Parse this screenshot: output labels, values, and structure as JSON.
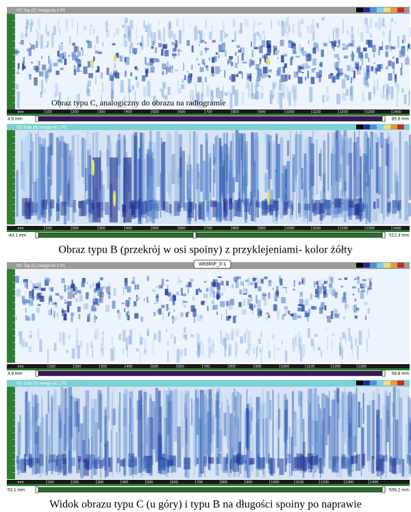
{
  "panels": [
    {
      "header": "VC-Top (C) merge:As 1 P1",
      "ruler_ticks": [
        "mm",
        "100",
        "200",
        "300",
        "400",
        "500",
        "600",
        "700",
        "800",
        "900",
        "1000",
        "1100",
        "1200",
        "1300",
        "1400"
      ],
      "range_start": "4.9 mm",
      "range_end": "85.6 mm"
    },
    {
      "header": "VC-Side (B) merge:As 1 P1",
      "ruler_ticks": [
        "mm",
        "100",
        "200",
        "300",
        "400",
        "500",
        "600",
        "700",
        "800",
        "900",
        "1000",
        "1100",
        "1200",
        "1300",
        "1400"
      ],
      "range_start": "-44.1 mm",
      "range_end": "512.3 mm"
    },
    {
      "header": "VC-Top (C) merge:As 1 P1",
      "tab": "W69RIP_0-1",
      "ruler_ticks": [
        "mm",
        "100",
        "200",
        "300",
        "400",
        "500",
        "600",
        "700",
        "800",
        "900",
        "1000",
        "1100",
        "1200",
        "1300"
      ],
      "range_start": "4.9 mm",
      "range_end": "58.8 mm"
    },
    {
      "header": "VC-Side (B) merge:As 1 P1",
      "ruler_ticks": [
        "mm",
        "100",
        "200",
        "300",
        "400",
        "500",
        "600",
        "700",
        "800",
        "900",
        "1000",
        "1100",
        "1200",
        "1300",
        "1400"
      ],
      "range_start": "53.1 mm",
      "range_end": "506.2 mm"
    }
  ],
  "captions": [
    "Obraz typu C, analogiczny do obrazu na radiogramie",
    "Obraz typu  B (przekrój w osi spoiny) z przyklejeniami- kolor żółty",
    "Widok obrazu typu C (u góry) i typu B na długości spoiny po naprawie"
  ]
}
